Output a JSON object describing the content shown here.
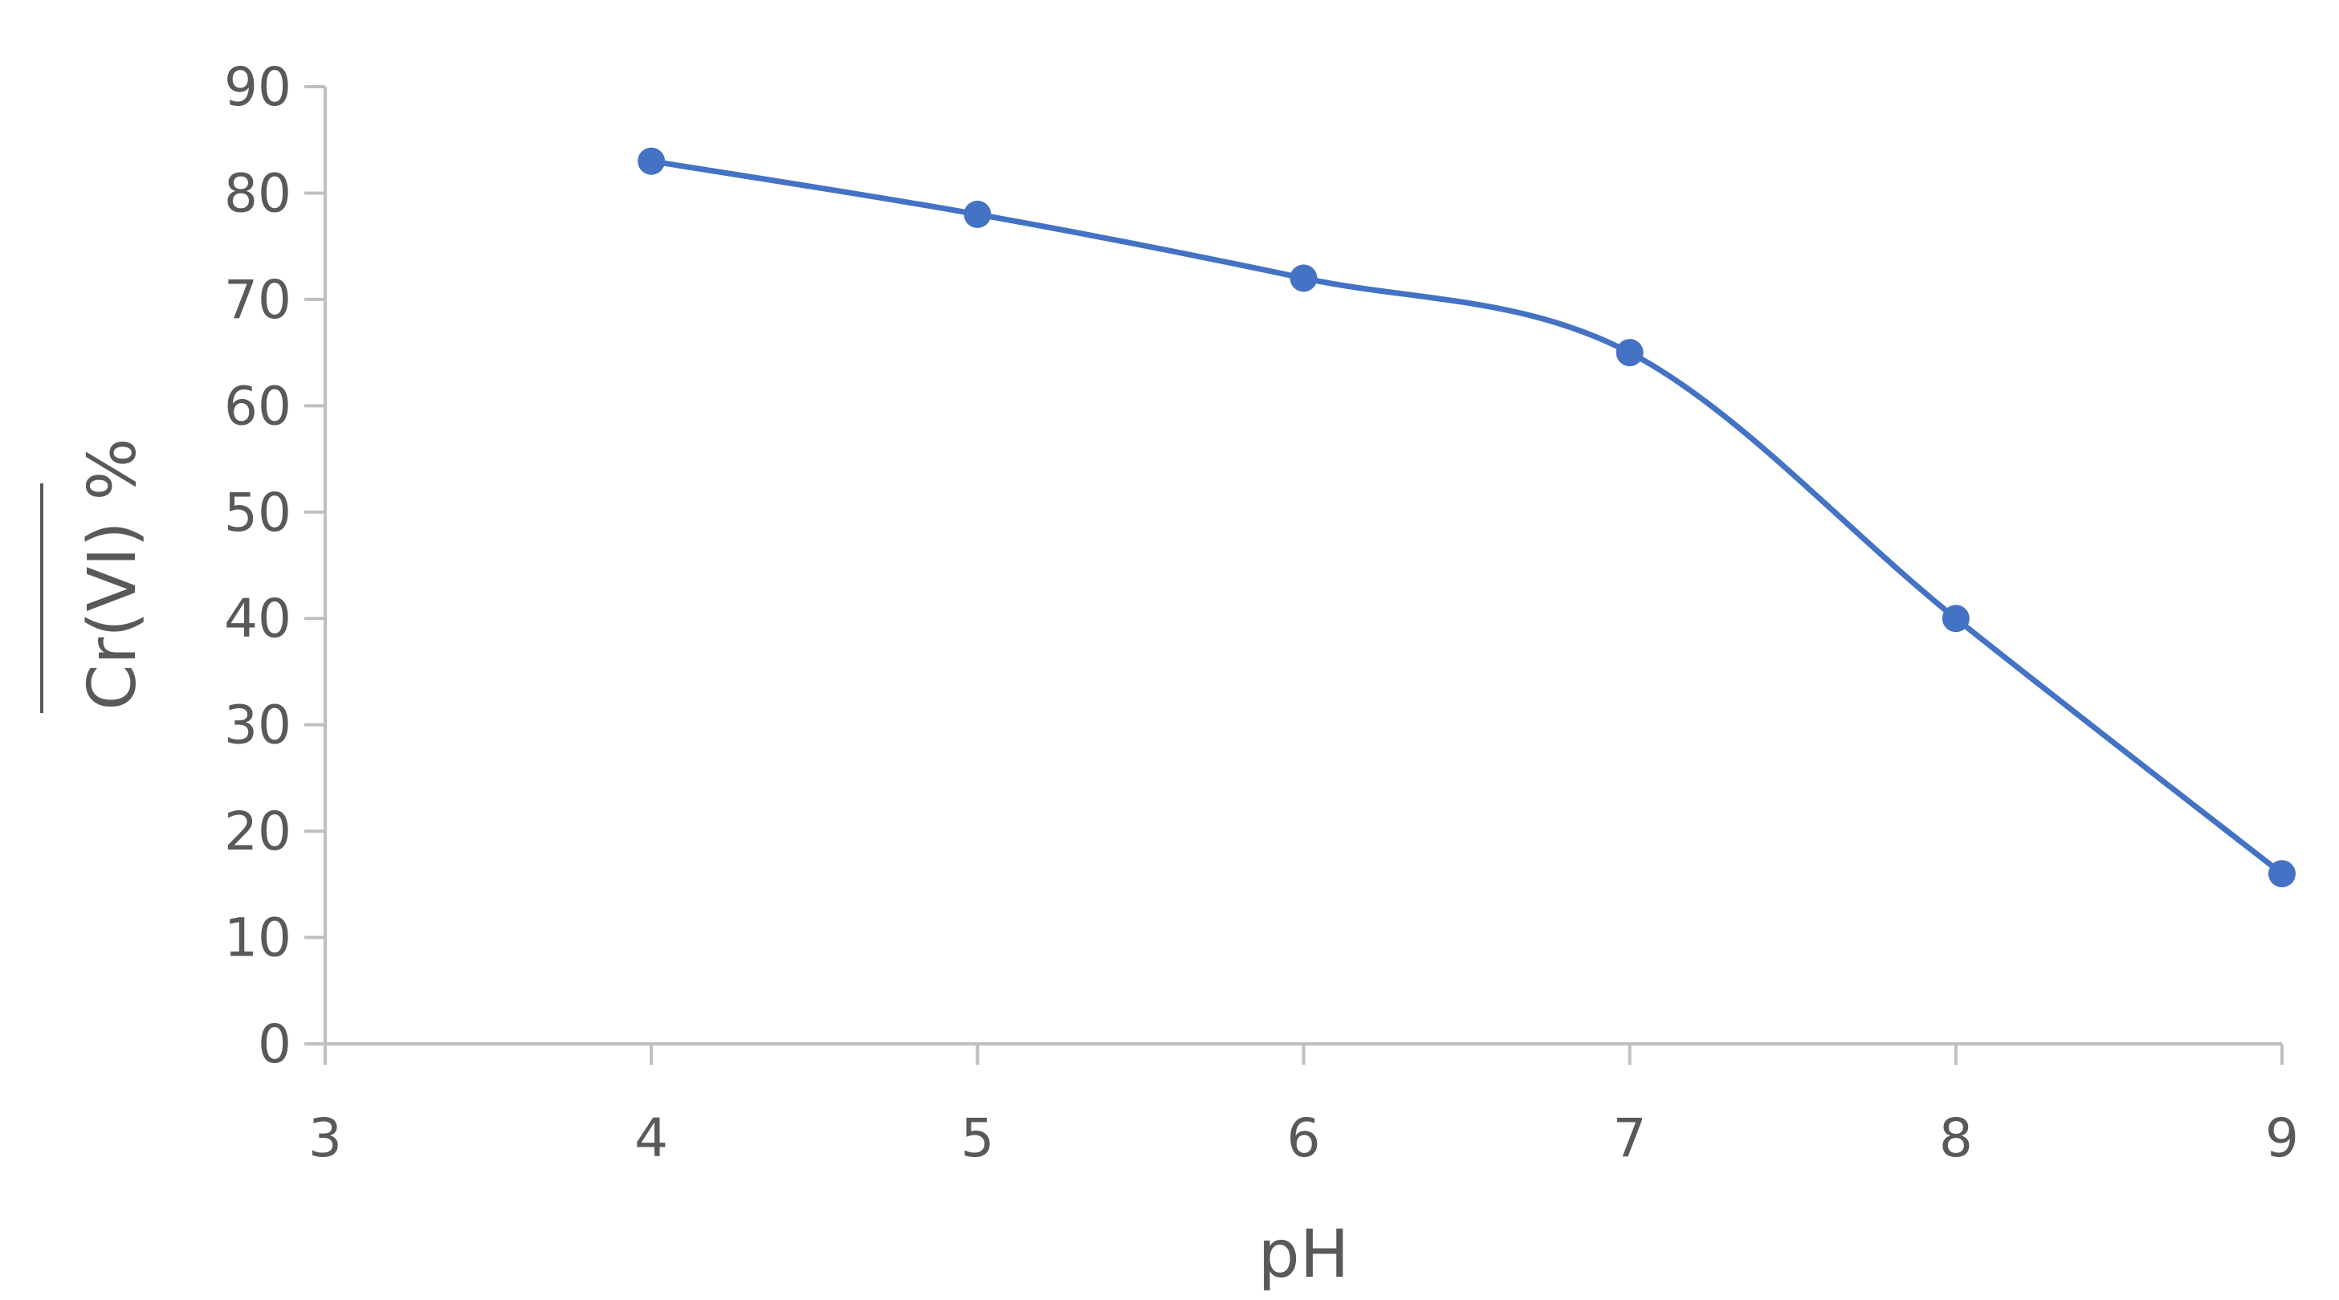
{
  "chart_data": {
    "type": "line",
    "smooth": true,
    "xlabel": "pH",
    "ylabel": "Cr(VI) %",
    "ylabel_overline": true,
    "xlim": [
      3,
      9
    ],
    "ylim": [
      0,
      90
    ],
    "x_ticks": [
      3,
      4,
      5,
      6,
      7,
      8,
      9
    ],
    "y_ticks": [
      0,
      10,
      20,
      30,
      40,
      50,
      60,
      70,
      80,
      90
    ],
    "grid": false,
    "legend": "none",
    "series": [
      {
        "x": [
          4,
          5,
          6,
          7,
          8,
          9
        ],
        "y": [
          83,
          78,
          72,
          65,
          40,
          16
        ],
        "color": "#4472C4",
        "marker": "circle"
      }
    ],
    "axis_color": "#bfbfbf",
    "text_color": "#595959"
  }
}
